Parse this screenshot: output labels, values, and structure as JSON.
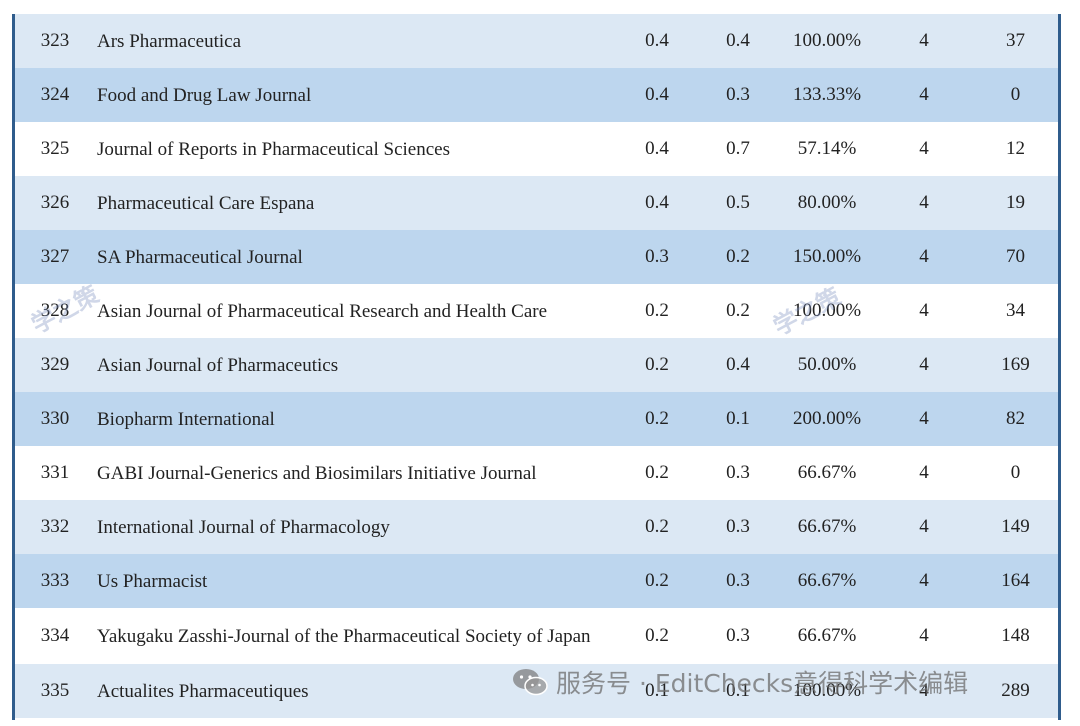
{
  "rows": [
    {
      "rank": "323",
      "name": "Ars Pharmaceutica",
      "v1": "0.4",
      "v2": "0.4",
      "pct": "100.00%",
      "q": "4",
      "cnt": "37"
    },
    {
      "rank": "324",
      "name": "Food and Drug Law Journal",
      "v1": "0.4",
      "v2": "0.3",
      "pct": "133.33%",
      "q": "4",
      "cnt": "0"
    },
    {
      "rank": "325",
      "name": "Journal of Reports in Pharmaceutical Sciences",
      "v1": "0.4",
      "v2": "0.7",
      "pct": "57.14%",
      "q": "4",
      "cnt": "12"
    },
    {
      "rank": "326",
      "name": "Pharmaceutical Care Espana",
      "v1": "0.4",
      "v2": "0.5",
      "pct": "80.00%",
      "q": "4",
      "cnt": "19"
    },
    {
      "rank": "327",
      "name": "SA Pharmaceutical Journal",
      "v1": "0.3",
      "v2": "0.2",
      "pct": "150.00%",
      "q": "4",
      "cnt": "70"
    },
    {
      "rank": "328",
      "name": "Asian Journal of Pharmaceutical Research and Health Care",
      "v1": "0.2",
      "v2": "0.2",
      "pct": "100.00%",
      "q": "4",
      "cnt": "34"
    },
    {
      "rank": "329",
      "name": "Asian Journal of Pharmaceutics",
      "v1": "0.2",
      "v2": "0.4",
      "pct": "50.00%",
      "q": "4",
      "cnt": "169"
    },
    {
      "rank": "330",
      "name": "Biopharm International",
      "v1": "0.2",
      "v2": "0.1",
      "pct": "200.00%",
      "q": "4",
      "cnt": "82"
    },
    {
      "rank": "331",
      "name": "GABI Journal-Generics and Biosimilars Initiative Journal",
      "v1": "0.2",
      "v2": "0.3",
      "pct": "66.67%",
      "q": "4",
      "cnt": "0"
    },
    {
      "rank": "332",
      "name": "International Journal of Pharmacology",
      "v1": "0.2",
      "v2": "0.3",
      "pct": "66.67%",
      "q": "4",
      "cnt": "149"
    },
    {
      "rank": "333",
      "name": "Us Pharmacist",
      "v1": "0.2",
      "v2": "0.3",
      "pct": "66.67%",
      "q": "4",
      "cnt": "164"
    },
    {
      "rank": "334",
      "name": "Yakugaku Zasshi-Journal of the Pharmaceutical Society of Japan",
      "v1": "0.2",
      "v2": "0.3",
      "pct": "66.67%",
      "q": "4",
      "cnt": "148"
    },
    {
      "rank": "335",
      "name": "Actualites Pharmaceutiques",
      "v1": "0.1",
      "v2": "0.1",
      "pct": "100.00%",
      "q": "4",
      "cnt": "289"
    }
  ],
  "watermark": {
    "stamp_text": "学之策",
    "footer_text": "服务号 · EditChecks意得科学术编辑"
  },
  "colors": {
    "border": "#2f5c8c",
    "row_light": "#dce8f4",
    "row_dark": "#bdd6ee"
  }
}
